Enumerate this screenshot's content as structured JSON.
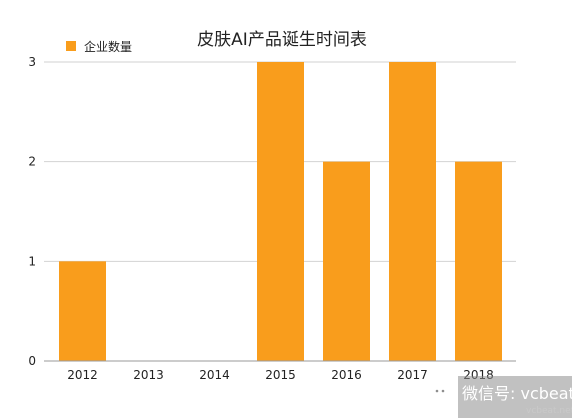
{
  "chart_data": {
    "type": "bar",
    "title": "皮肤AI产品诞生时间表",
    "categories": [
      "2012",
      "2013",
      "2014",
      "2015",
      "2016",
      "2017",
      "2018"
    ],
    "series": [
      {
        "name": "企业数量",
        "values": [
          1,
          0,
          0,
          3,
          2,
          3,
          2
        ]
      }
    ],
    "ylim": [
      0,
      3
    ],
    "yticks": [
      "0",
      "1",
      "2",
      "3"
    ],
    "grid": true,
    "legend_position": "top-left",
    "bar_color": "#F99D1C"
  },
  "watermark": {
    "text": "微信号: vcbeat",
    "sub": "vcbeat.net"
  }
}
